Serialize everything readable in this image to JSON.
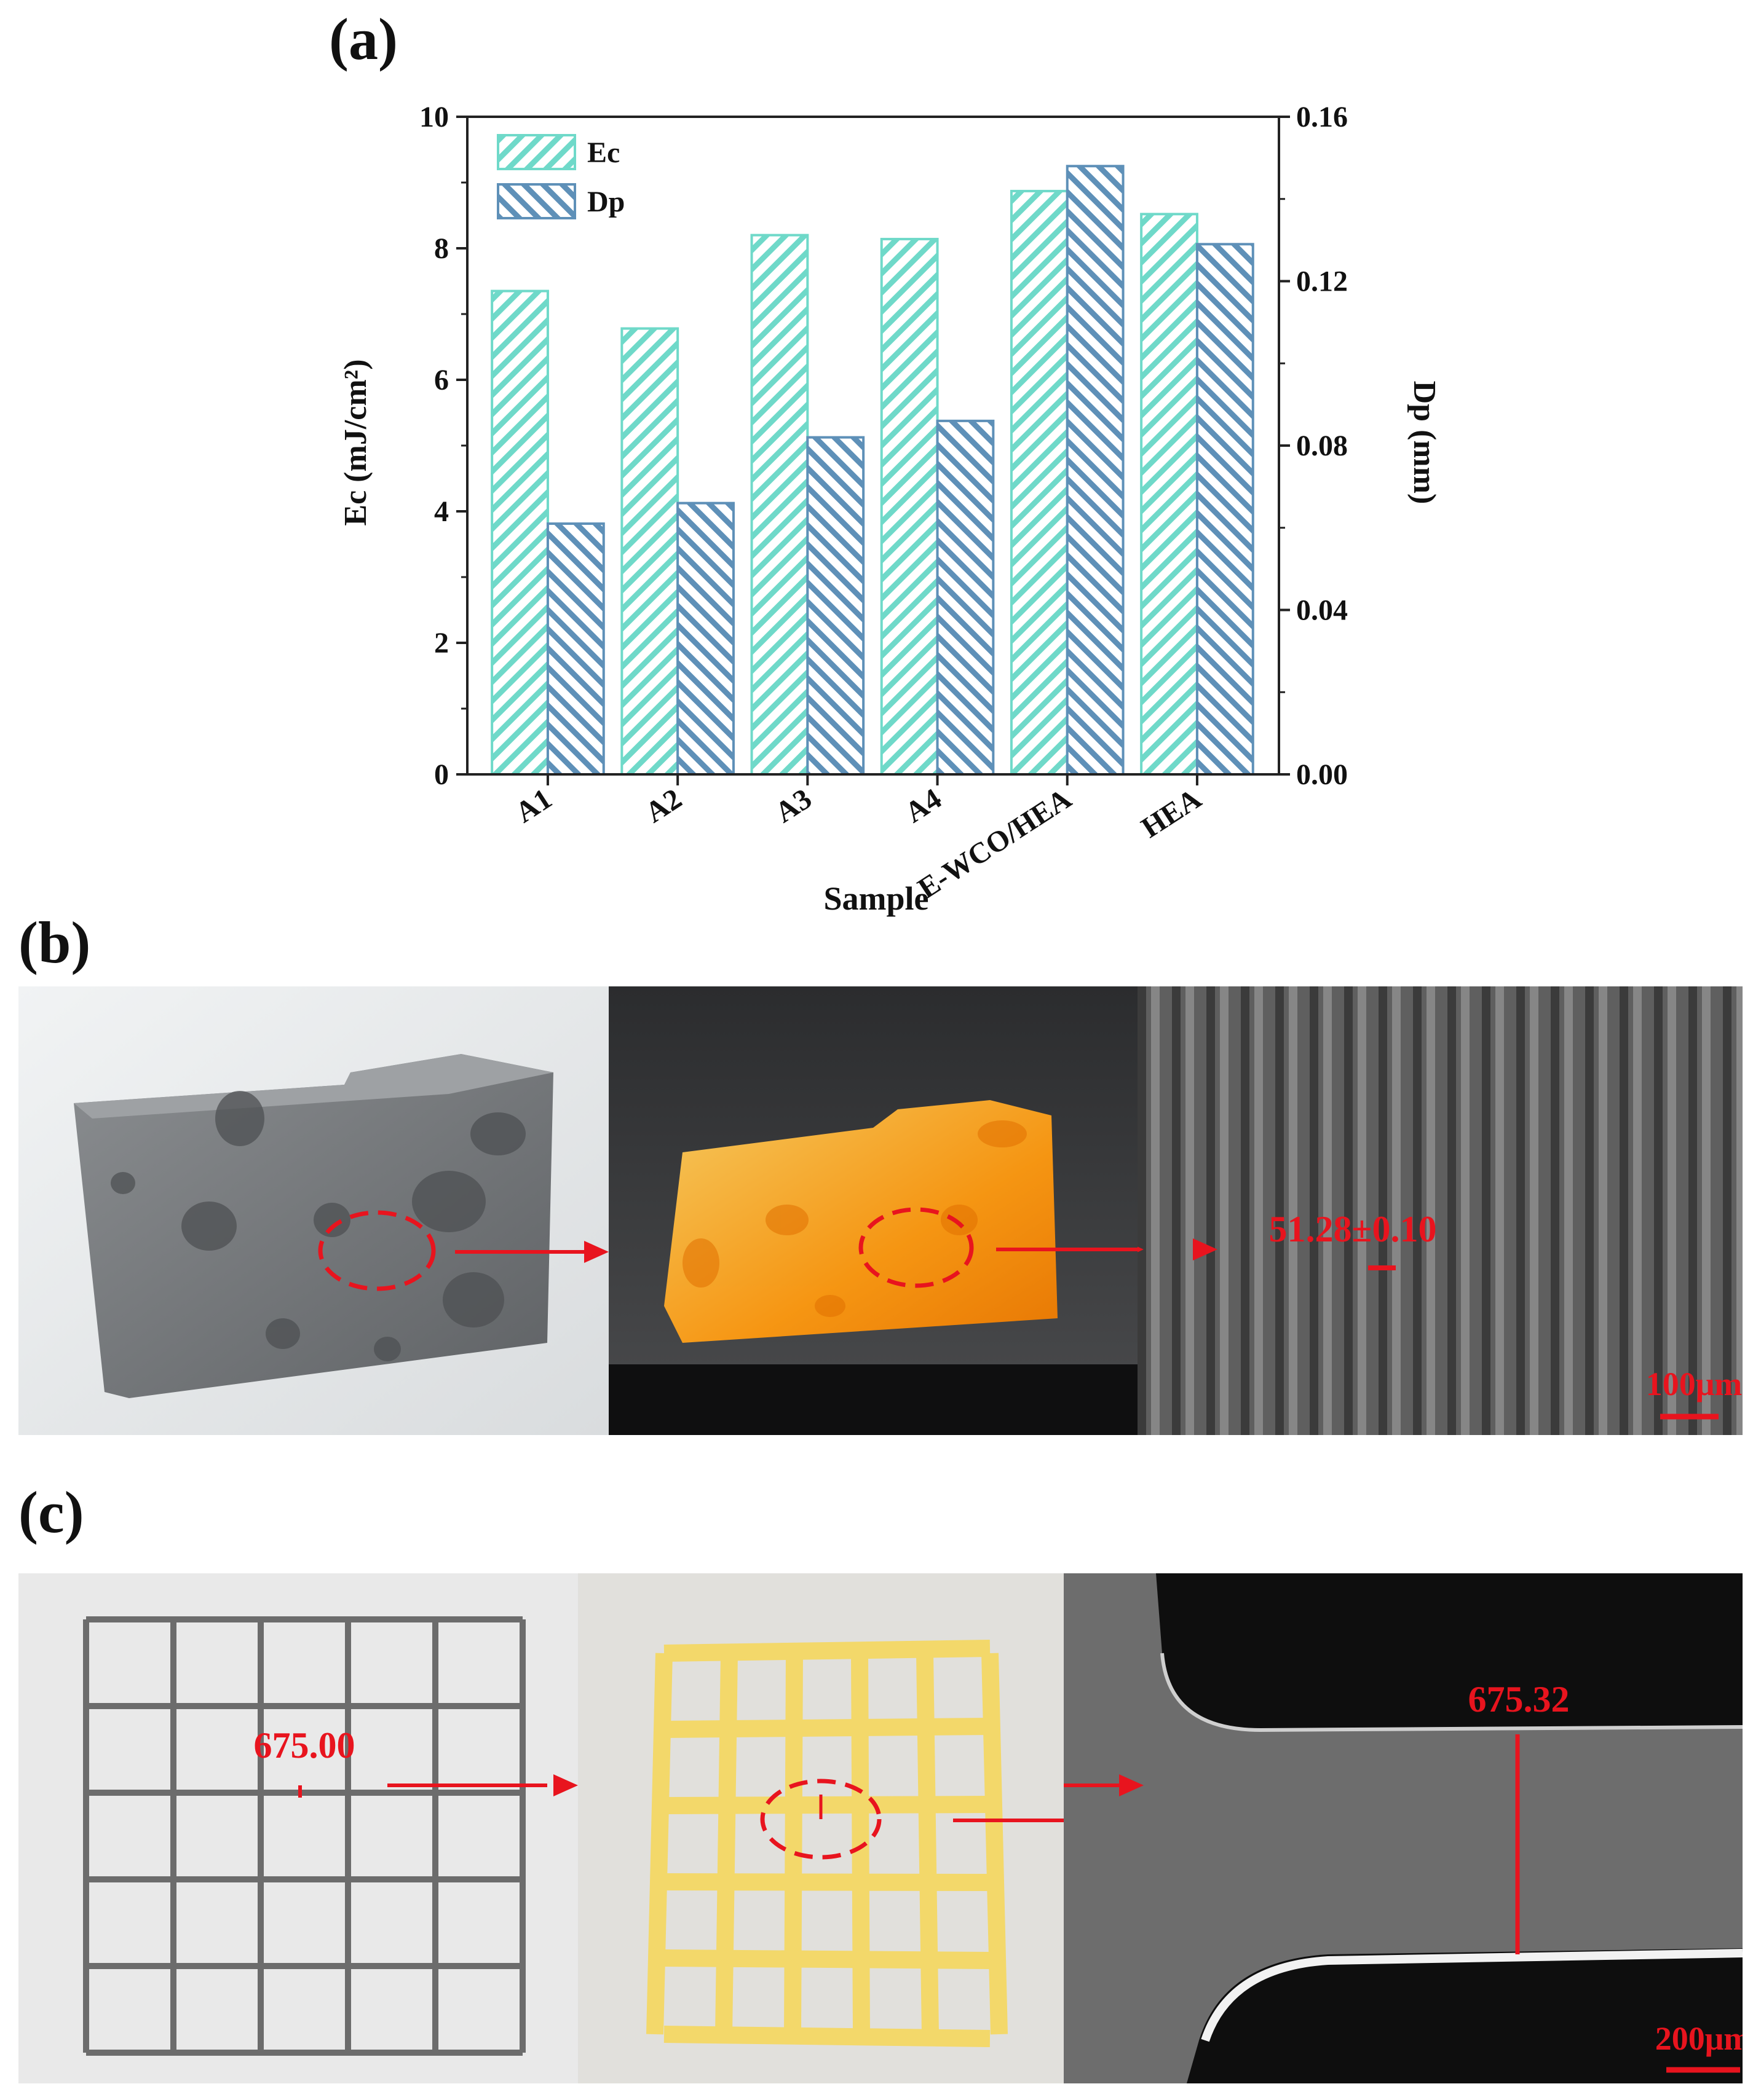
{
  "panels": {
    "a": "(a)",
    "b": "(b)",
    "c": "(c)"
  },
  "chart_data": {
    "type": "bar",
    "categories": [
      "A1",
      "A2",
      "A3",
      "A4",
      "E-WCO/HEA",
      "HEA"
    ],
    "series": [
      {
        "name": "Ec",
        "axis": "left",
        "values": [
          7.35,
          6.78,
          8.2,
          8.14,
          8.87,
          8.52
        ],
        "color": "#6fd9c9"
      },
      {
        "name": "Dp",
        "axis": "right",
        "values": [
          0.061,
          0.066,
          0.082,
          0.086,
          0.148,
          0.129
        ],
        "color": "#5e90b8"
      }
    ],
    "xlabel": "Sample",
    "ylabel": "Ec (mJ/cm²)",
    "ylabel_right": "Dp (mm)",
    "ylim": [
      0,
      10
    ],
    "ylim_right": [
      0,
      0.16
    ],
    "yticks": [
      "0",
      "2",
      "4",
      "6",
      "8",
      "10"
    ],
    "yticks_right": [
      "0.00",
      "0.04",
      "0.08",
      "0.12",
      "0.16"
    ],
    "legend_position": "top-left",
    "grid": false,
    "hatch": "diagonal"
  },
  "panel_b": {
    "measure_label": "51.28±0.10",
    "scale_bar": "100μm"
  },
  "panel_c": {
    "design_label": "675.00",
    "measure_label": "675.32",
    "scale_bar": "200μm"
  },
  "colors": {
    "annotation_red": "#e8141e",
    "ec_bar": "#6fd9c9",
    "dp_bar": "#5e90b8"
  }
}
